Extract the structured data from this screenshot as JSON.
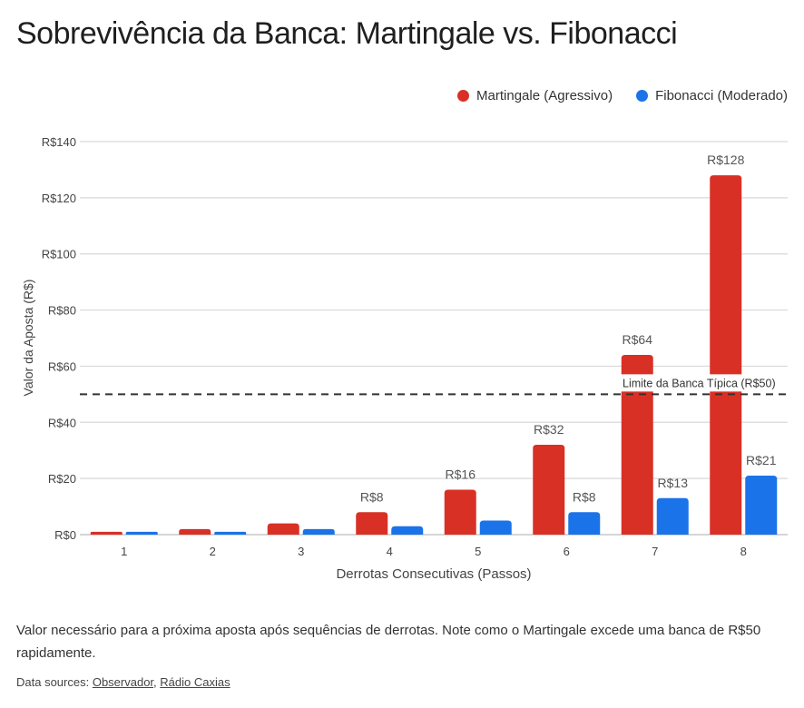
{
  "chart_data": {
    "type": "bar",
    "title": "Sobrevivência da Banca: Martingale vs. Fibonacci",
    "xlabel": "Derrotas Consecutivas (Passos)",
    "ylabel": "Valor da Aposta (R$)",
    "ylim": [
      0,
      140
    ],
    "yticks": [
      0,
      20,
      40,
      60,
      80,
      100,
      120,
      140
    ],
    "ytick_labels": [
      "R$0",
      "R$20",
      "R$40",
      "R$60",
      "R$80",
      "R$100",
      "R$120",
      "R$140"
    ],
    "categories": [
      "1",
      "2",
      "3",
      "4",
      "5",
      "6",
      "7",
      "8"
    ],
    "grid": true,
    "legend_position": "top-right",
    "series": [
      {
        "name": "Martingale (Agressivo)",
        "color": "#d93025",
        "values": [
          1,
          2,
          4,
          8,
          16,
          32,
          64,
          128
        ],
        "data_labels": [
          "",
          "",
          "",
          "R$8",
          "R$16",
          "R$32",
          "R$64",
          "R$128"
        ]
      },
      {
        "name": "Fibonacci (Moderado)",
        "color": "#1a73e8",
        "values": [
          1,
          1,
          2,
          3,
          5,
          8,
          13,
          21
        ],
        "data_labels": [
          "",
          "",
          "",
          "",
          "",
          "R$8",
          "R$13",
          "R$21"
        ]
      }
    ],
    "annotation": {
      "value": 50,
      "label": "Limite da Banca Típica (R$50)",
      "style": "dashed"
    }
  },
  "caption": "Valor necessário para a próxima aposta após sequências de derrotas. Note como o Martingale excede uma banca de R$50 rapidamente.",
  "sources": {
    "prefix": "Data sources: ",
    "links": [
      "Observador",
      "Rádio Caxias"
    ],
    "separator": ", "
  }
}
